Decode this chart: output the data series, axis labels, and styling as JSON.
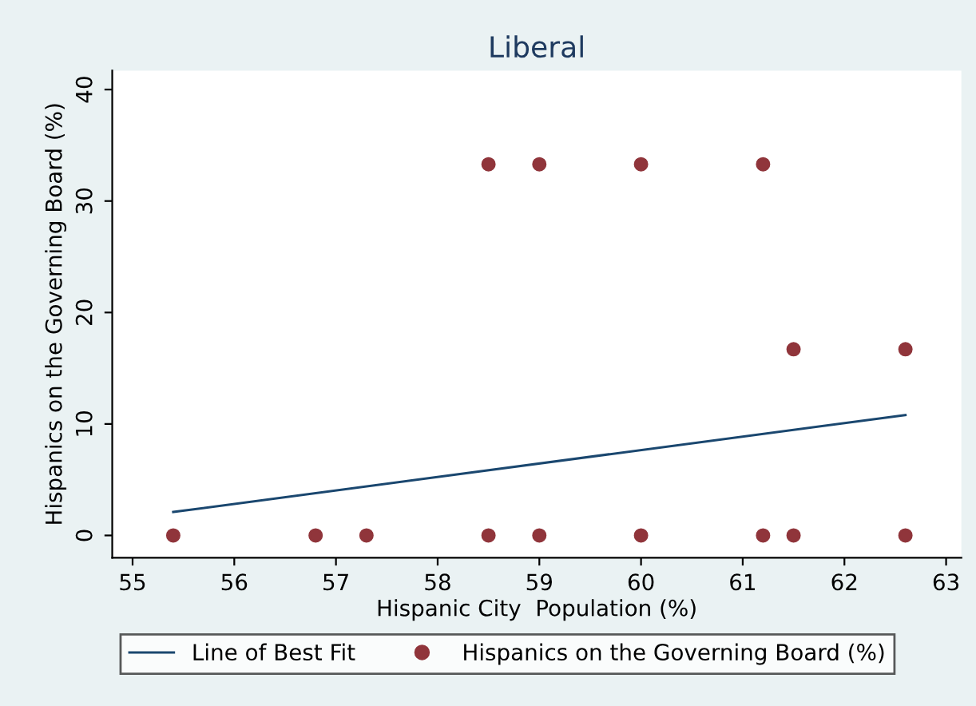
{
  "chart_data": {
    "type": "scatter",
    "title": "Liberal",
    "xlabel": "Hispanic City  Population (%)",
    "ylabel": "Hispanics on the Governing Board (%)",
    "series": [
      {
        "name": "Line of Best Fit",
        "type": "line",
        "marker": "none",
        "color": "#1a476f",
        "x": [
          55.4,
          62.6
        ],
        "values": [
          2.1,
          10.8
        ]
      },
      {
        "name": "Hispanics on the Governing Board (%)",
        "color": "#90353b",
        "x": [
          58.5,
          59,
          60,
          61.2,
          61.5,
          62.6,
          55.4,
          56.8,
          57.3,
          58.5,
          59,
          60,
          61.2,
          61.5,
          62.6
        ],
        "values": [
          33.3,
          33.3,
          33.3,
          33.3,
          16.7,
          16.7,
          0,
          0,
          0,
          0,
          0,
          0,
          0,
          0,
          0
        ]
      }
    ],
    "xlim": [
      54.8,
      63.15
    ],
    "xticks": [
      55,
      56,
      57,
      58,
      59,
      60,
      61,
      62,
      63
    ],
    "ylim": [
      -2,
      41.7
    ],
    "yticks": [
      0,
      10,
      20,
      30,
      40
    ],
    "grid": false,
    "legend": "bottom",
    "marker": "circle",
    "line_style": "solid"
  }
}
